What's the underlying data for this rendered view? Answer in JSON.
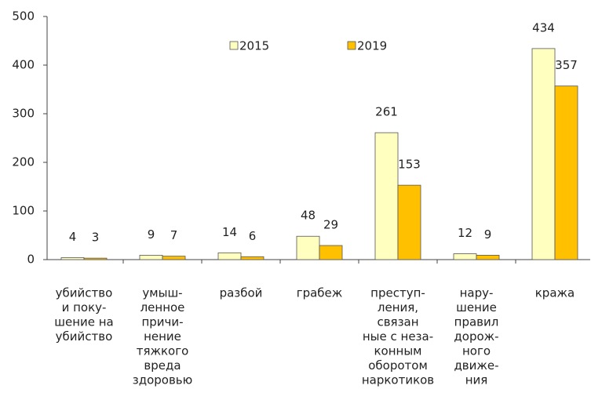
{
  "chart_data": {
    "type": "bar",
    "categories": [
      [
        "убийство",
        "и поку-",
        "шение на",
        "убийство"
      ],
      [
        "умыш-",
        "ленное",
        "причи-",
        "нение",
        "тяжкого",
        "вреда",
        "здоровью"
      ],
      [
        "разбой"
      ],
      [
        "грабеж"
      ],
      [
        "преступ-",
        "ления,",
        "связан",
        "ные с неза-",
        "конным",
        "оборотом",
        "наркотиков"
      ],
      [
        "нару-",
        "шение",
        "правил",
        "дорож-",
        "ного",
        "движе-",
        "ния"
      ],
      [
        "кража"
      ]
    ],
    "series": [
      {
        "name": "2015",
        "color": "#ffffc0",
        "values": [
          4,
          9,
          14,
          48,
          261,
          12,
          434
        ]
      },
      {
        "name": "2019",
        "color": "#ffc000",
        "values": [
          3,
          7,
          6,
          29,
          153,
          9,
          357
        ]
      }
    ],
    "ylim": [
      0,
      500
    ],
    "yticks": [
      0,
      100,
      200,
      300,
      400,
      500
    ],
    "grid": false
  }
}
